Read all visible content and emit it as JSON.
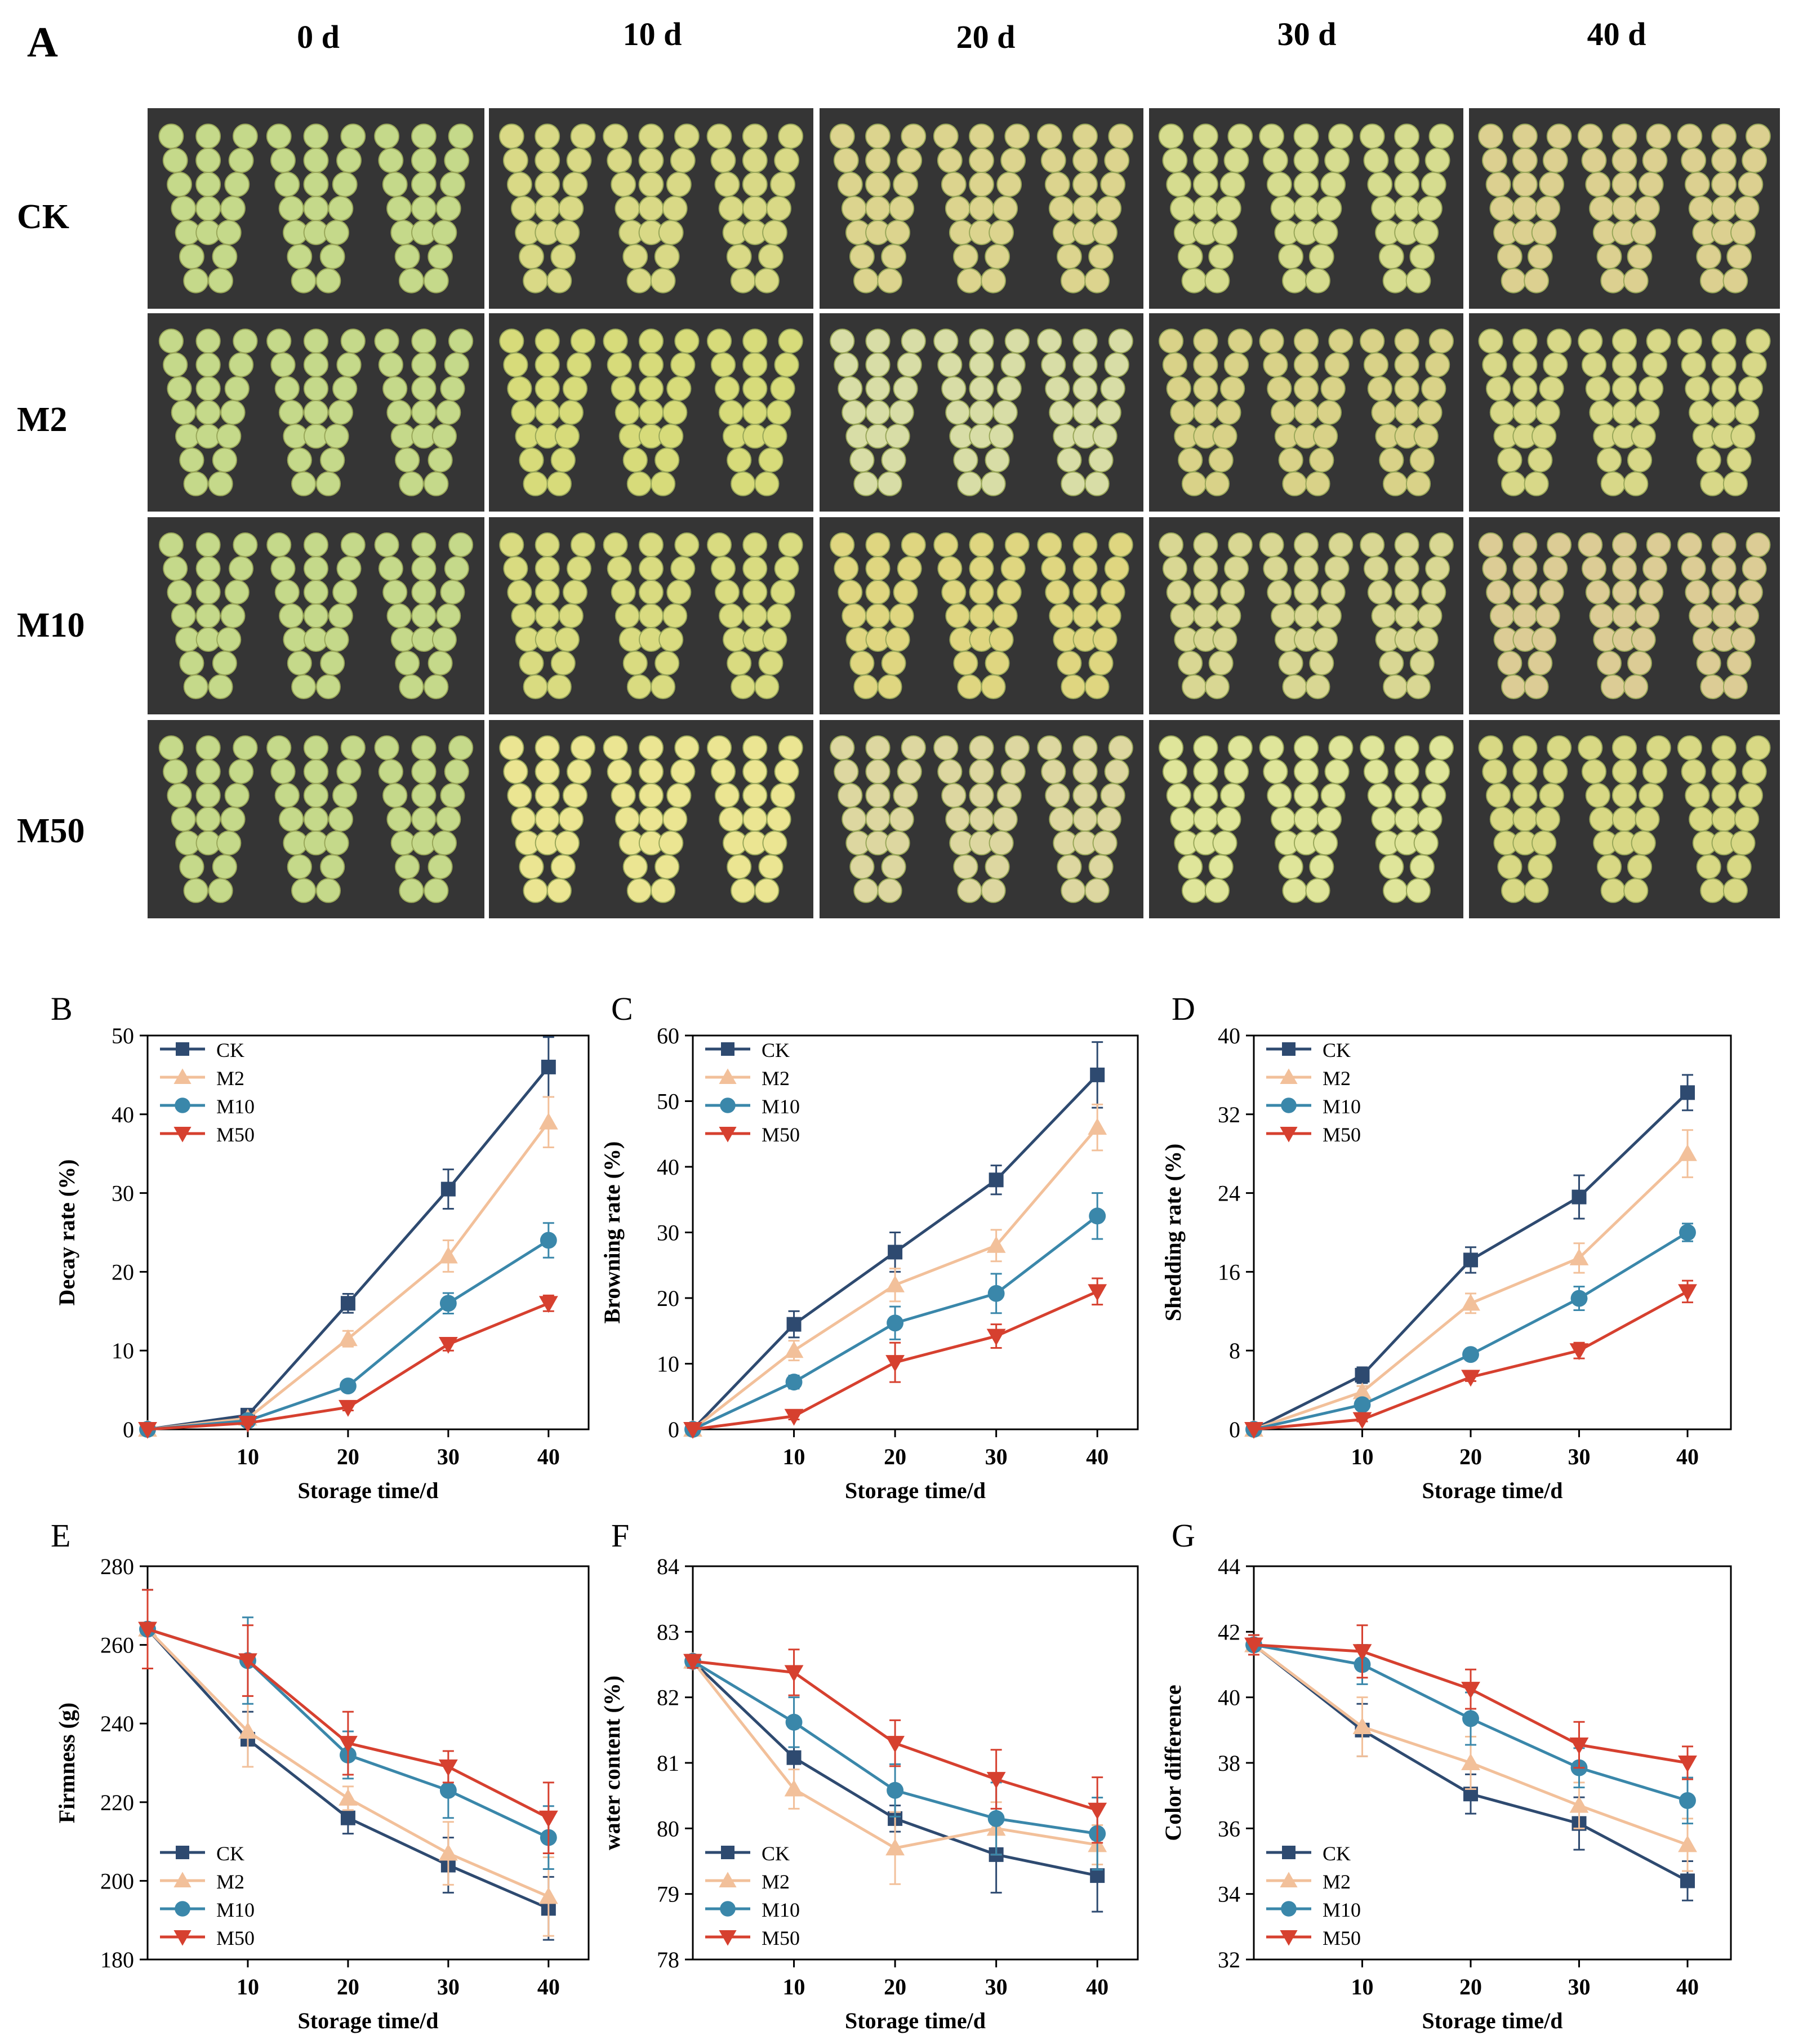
{
  "panel_letters": [
    "A",
    "B",
    "C",
    "D",
    "E",
    "F",
    "G"
  ],
  "photo_grid": {
    "columns": [
      "0 d",
      "10 d",
      "20 d",
      "30 d",
      "40 d"
    ],
    "rows": [
      "CK",
      "M2",
      "M10",
      "M50"
    ],
    "tints": [
      [
        "#c5d98a",
        "#d9d986",
        "#dcd48e",
        "#d6dc8f",
        "#dcd090"
      ],
      [
        "#c5d98a",
        "#d7db7a",
        "#d8dda6",
        "#d9d288",
        "#d8d888"
      ],
      [
        "#c5d98a",
        "#d9db80",
        "#dfd680",
        "#d9d793",
        "#dccc95"
      ],
      [
        "#c5d98a",
        "#ebe592",
        "#ddd7a0",
        "#dfe59a",
        "#d8d884"
      ]
    ]
  },
  "colors": {
    "CK": "#2e4a70",
    "M2": "#f2c09a",
    "M10": "#3a87aa",
    "M50": "#d6402f",
    "photo_bg": "#353535"
  },
  "series_names": [
    "CK",
    "M2",
    "M10",
    "M50"
  ],
  "chart_data": [
    {
      "type": "line",
      "panel": "B",
      "xlabel": "Storage time/d",
      "ylabel": "Decay rate (%)",
      "x": [
        0,
        10,
        20,
        30,
        40
      ],
      "xticks": [
        10,
        20,
        30,
        40
      ],
      "ylim": [
        0,
        50
      ],
      "yticks": [
        0,
        10,
        20,
        30,
        40,
        50
      ],
      "legend": "top-left",
      "series": [
        {
          "name": "CK",
          "values": [
            0,
            1.8,
            16,
            30.5,
            46
          ],
          "err": [
            0,
            0.4,
            1.2,
            2.5,
            3.8
          ]
        },
        {
          "name": "M2",
          "values": [
            0,
            1.4,
            11.5,
            22,
            39
          ],
          "err": [
            0,
            0.3,
            1,
            2,
            3.2
          ]
        },
        {
          "name": "M10",
          "values": [
            0,
            1.1,
            5.5,
            16,
            24
          ],
          "err": [
            0,
            0.2,
            0.6,
            1.3,
            2.2
          ]
        },
        {
          "name": "M50",
          "values": [
            0,
            0.8,
            2.8,
            10.8,
            16
          ],
          "err": [
            0,
            0.2,
            0.4,
            0.8,
            1
          ]
        }
      ]
    },
    {
      "type": "line",
      "panel": "C",
      "xlabel": "Storage time/d",
      "ylabel": "Browning rate (%)",
      "x": [
        0,
        10,
        20,
        30,
        40
      ],
      "xticks": [
        10,
        20,
        30,
        40
      ],
      "ylim": [
        0,
        60
      ],
      "yticks": [
        0,
        10,
        20,
        30,
        40,
        50,
        60
      ],
      "legend": "top-left",
      "series": [
        {
          "name": "CK",
          "values": [
            0,
            16,
            27,
            38,
            54
          ],
          "err": [
            0,
            2,
            3,
            2.2,
            5
          ]
        },
        {
          "name": "M2",
          "values": [
            0,
            12,
            22,
            28,
            46
          ],
          "err": [
            0,
            1.5,
            2.5,
            2.4,
            3.5
          ]
        },
        {
          "name": "M10",
          "values": [
            0,
            7.2,
            16.2,
            20.7,
            32.5
          ],
          "err": [
            0,
            1,
            2.5,
            3,
            3.5
          ]
        },
        {
          "name": "M50",
          "values": [
            0,
            2,
            10.2,
            14.2,
            21
          ],
          "err": [
            0,
            0.5,
            3,
            1.8,
            2
          ]
        }
      ]
    },
    {
      "type": "line",
      "panel": "D",
      "xlabel": "Storage time/d",
      "ylabel": "Shedding rate (%)",
      "x": [
        0,
        10,
        20,
        30,
        40
      ],
      "xticks": [
        10,
        20,
        30,
        40
      ],
      "ylim": [
        0,
        40
      ],
      "yticks": [
        0,
        8,
        16,
        24,
        32,
        40
      ],
      "legend": "top-left",
      "series": [
        {
          "name": "CK",
          "values": [
            0,
            5.5,
            17.2,
            23.6,
            34.2
          ],
          "err": [
            0,
            0.8,
            1.3,
            2.2,
            1.8
          ]
        },
        {
          "name": "M2",
          "values": [
            0,
            3.8,
            12.8,
            17.4,
            28
          ],
          "err": [
            0,
            0.6,
            1,
            1.5,
            2.4
          ]
        },
        {
          "name": "M10",
          "values": [
            0,
            2.5,
            7.6,
            13.3,
            20
          ],
          "err": [
            0,
            0.3,
            0.4,
            1.2,
            0.9
          ]
        },
        {
          "name": "M50",
          "values": [
            0,
            1,
            5.3,
            8,
            14
          ],
          "err": [
            0,
            0.2,
            0.4,
            0.8,
            1.1
          ]
        }
      ]
    },
    {
      "type": "line",
      "panel": "E",
      "xlabel": "Storage time/d",
      "ylabel": "Firmness (g)",
      "x": [
        0,
        10,
        20,
        30,
        40
      ],
      "xticks": [
        10,
        20,
        30,
        40
      ],
      "ylim": [
        180,
        280
      ],
      "yticks": [
        180,
        200,
        220,
        240,
        260,
        280
      ],
      "legend": "bottom-left",
      "series": [
        {
          "name": "CK",
          "values": [
            264,
            236,
            216,
            204,
            193
          ],
          "err": [
            10,
            7,
            4,
            7,
            8
          ]
        },
        {
          "name": "M2",
          "values": [
            264,
            238,
            221,
            207,
            196
          ],
          "err": [
            10,
            9,
            3,
            8,
            10
          ]
        },
        {
          "name": "M10",
          "values": [
            264,
            256,
            232,
            223,
            211
          ],
          "err": [
            10,
            11,
            6,
            7,
            8
          ]
        },
        {
          "name": "M50",
          "values": [
            264,
            256,
            235,
            229,
            216
          ],
          "err": [
            10,
            9,
            8,
            4,
            9
          ]
        }
      ]
    },
    {
      "type": "line",
      "panel": "F",
      "xlabel": "Storage time/d",
      "ylabel": "water content (%)",
      "x": [
        0,
        10,
        20,
        30,
        40
      ],
      "xticks": [
        10,
        20,
        30,
        40
      ],
      "ylim": [
        78,
        84
      ],
      "yticks": [
        78,
        79,
        80,
        81,
        82,
        83,
        84
      ],
      "legend": "bottom-left",
      "series": [
        {
          "name": "CK",
          "values": [
            82.55,
            81.08,
            80.15,
            79.6,
            79.28
          ],
          "err": [
            0.1,
            0.5,
            0.2,
            0.58,
            0.55
          ]
        },
        {
          "name": "M2",
          "values": [
            82.55,
            80.6,
            79.7,
            80,
            79.75
          ],
          "err": [
            0.1,
            0.3,
            0.55,
            0.4,
            0.3
          ]
        },
        {
          "name": "M10",
          "values": [
            82.55,
            81.62,
            80.58,
            80.15,
            79.92
          ],
          "err": [
            0.1,
            0.38,
            0.4,
            0.55,
            0.55
          ]
        },
        {
          "name": "M50",
          "values": [
            82.55,
            82.38,
            81.3,
            80.75,
            80.28
          ],
          "err": [
            0.1,
            0.35,
            0.35,
            0.45,
            0.5
          ]
        }
      ]
    },
    {
      "type": "line",
      "panel": "G",
      "xlabel": "Storage time/d",
      "ylabel": "Color difference",
      "x": [
        0,
        10,
        20,
        30,
        40
      ],
      "xticks": [
        10,
        20,
        30,
        40
      ],
      "ylim": [
        32,
        44
      ],
      "yticks": [
        32,
        34,
        36,
        38,
        40,
        42,
        44
      ],
      "legend": "bottom-left",
      "series": [
        {
          "name": "CK",
          "values": [
            41.6,
            39,
            37.05,
            36.15,
            34.4
          ],
          "err": [
            0.3,
            0.8,
            0.6,
            0.8,
            0.6
          ]
        },
        {
          "name": "M2",
          "values": [
            41.6,
            39.1,
            38,
            36.7,
            35.5
          ],
          "err": [
            0.3,
            0.9,
            0.8,
            0.7,
            0.8
          ]
        },
        {
          "name": "M10",
          "values": [
            41.6,
            41,
            39.35,
            37.85,
            36.85
          ],
          "err": [
            0.3,
            0.6,
            0.8,
            0.6,
            0.7
          ]
        },
        {
          "name": "M50",
          "values": [
            41.6,
            41.4,
            40.25,
            38.55,
            38
          ],
          "err": [
            0.3,
            0.8,
            0.6,
            0.7,
            0.5
          ]
        }
      ]
    }
  ]
}
